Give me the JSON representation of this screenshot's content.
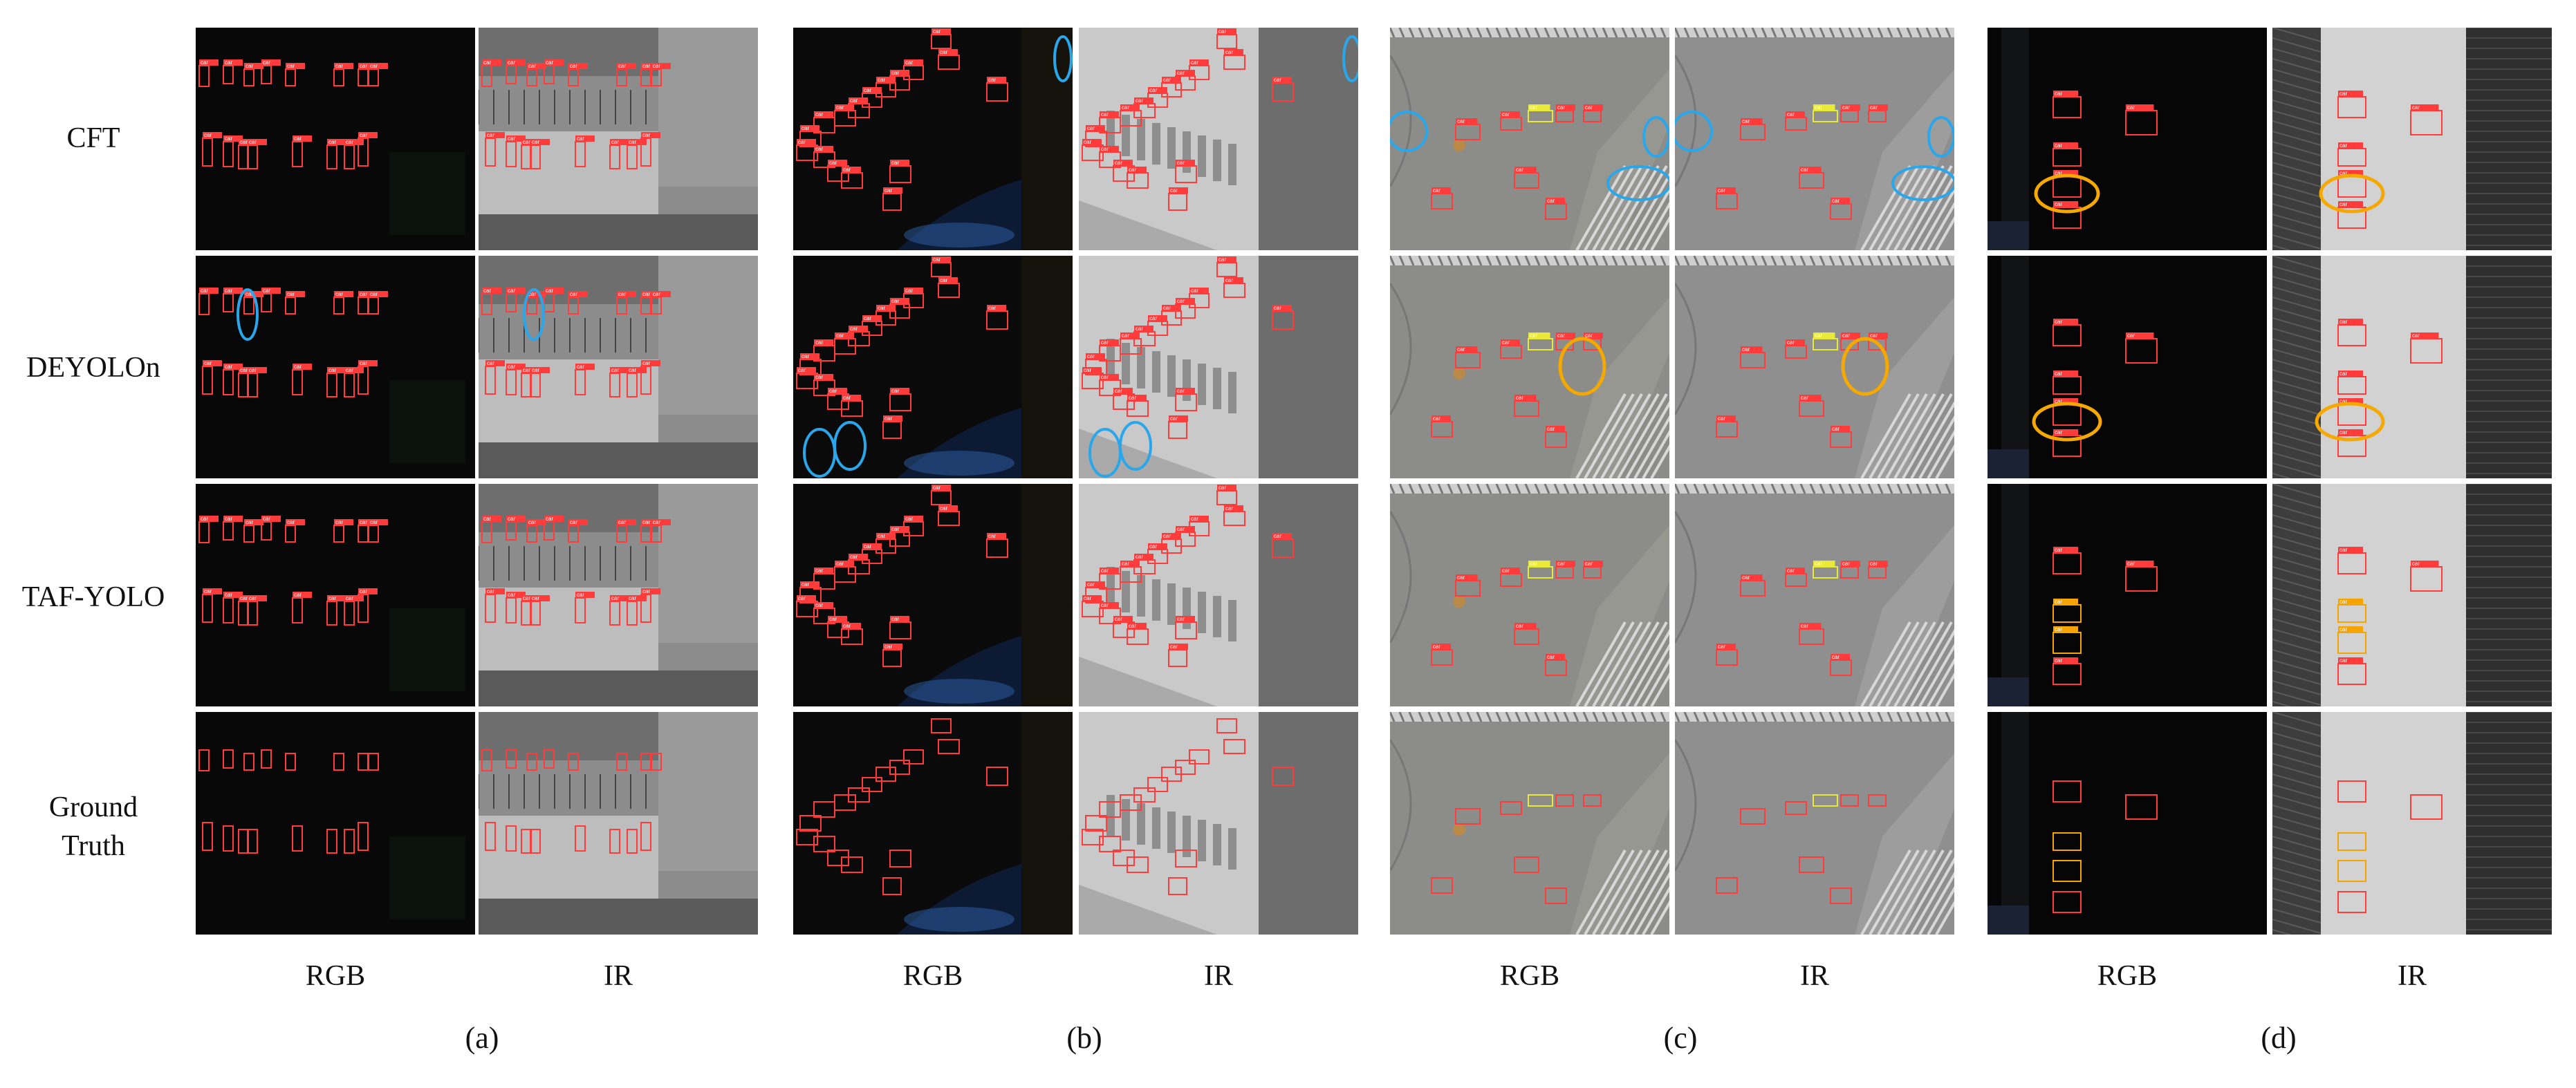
{
  "row_labels": [
    "CFT",
    "DEYOLOn",
    "TAF-YOLO",
    "Ground\nTruth"
  ],
  "modalities": [
    "RGB",
    "IR"
  ],
  "groups": [
    "(a)",
    "(b)",
    "(c)",
    "(d)"
  ],
  "box_label_text": "car",
  "colors": {
    "box_red": "#ff3b3b",
    "box_yellow": "#e9e93a",
    "box_orange": "#f6a400",
    "ellipse_blue": "#2aa7ea",
    "ellipse_orange": "#f5a800"
  }
}
